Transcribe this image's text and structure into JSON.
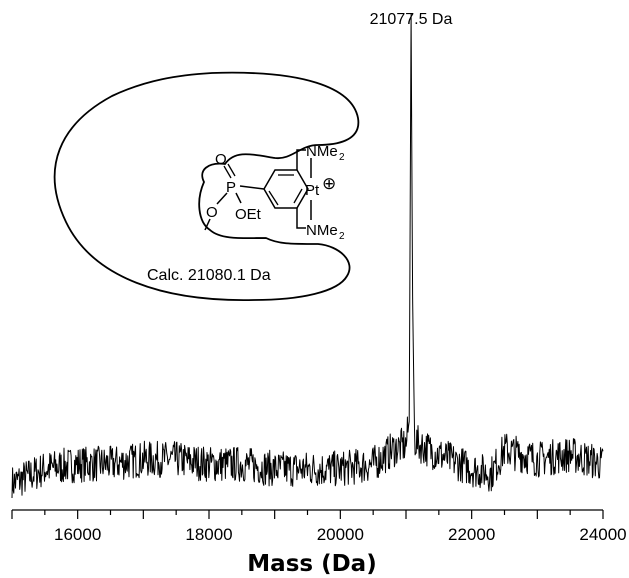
{
  "chart_data": {
    "type": "line",
    "title": "",
    "xlabel": "Mass (Da)",
    "ylabel": "",
    "xlim": [
      15000,
      24000
    ],
    "ylim": [
      0,
      1
    ],
    "grid": false,
    "legend": "none",
    "x_ticks": [
      16000,
      18000,
      20000,
      22000,
      24000
    ],
    "x_tick_labels": [
      "16000",
      "18000",
      "20000",
      "22000",
      "24000"
    ],
    "minor_tick_step": 500,
    "line_color": "#000000",
    "series": [
      {
        "x": [
          15000,
          15500,
          16000,
          16500,
          17000,
          17500,
          18000,
          18500,
          19000,
          19500,
          20000,
          20500,
          20800,
          21000,
          21050,
          21077.5,
          21100,
          21130,
          21200,
          21500,
          22000,
          22300,
          22500,
          23000,
          23500,
          24000
        ],
        "values": [
          0.03,
          0.06,
          0.07,
          0.07,
          0.08,
          0.08,
          0.07,
          0.07,
          0.06,
          0.06,
          0.06,
          0.07,
          0.1,
          0.11,
          0.16,
          1.0,
          0.42,
          0.12,
          0.11,
          0.09,
          0.06,
          0.05,
          0.1,
          0.08,
          0.09,
          0.07
        ]
      }
    ],
    "peak_label": "21077.5 Da"
  },
  "inset": {
    "calc_label": "Calc. 21080.1 Da",
    "group_nme2_top": "NMe",
    "group_nme2_bottom": "NMe",
    "subscript": "2",
    "metal": "Pt",
    "charge": "⊕",
    "phosphorus": "P",
    "oxo": "O",
    "ethoxy": "OEt",
    "linker_oxygen": "O"
  }
}
